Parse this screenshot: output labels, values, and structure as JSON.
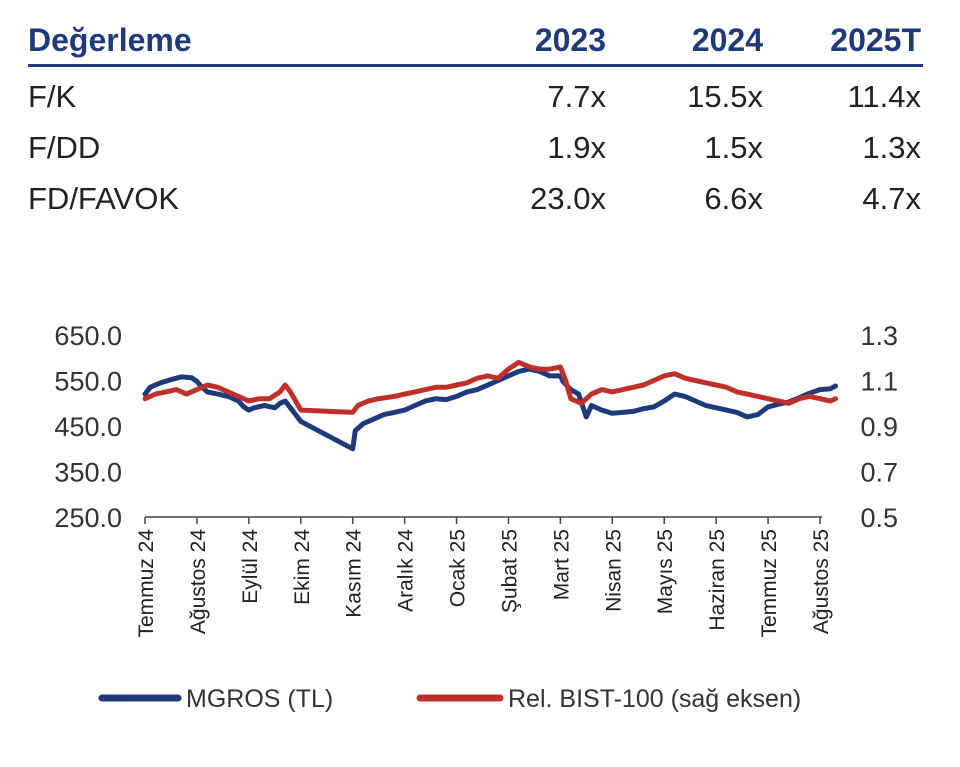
{
  "valuation": {
    "header": {
      "label": "Değerleme",
      "y1": "2023",
      "y2": "2024",
      "y3": "2025T"
    },
    "rows": [
      {
        "label": "F/K",
        "y1": "7.7x",
        "y2": "15.5x",
        "y3": "11.4x"
      },
      {
        "label": "F/DD",
        "y1": "1.9x",
        "y2": "1.5x",
        "y3": "1.3x"
      },
      {
        "label": "FD/FAVOK",
        "y1": "23.0x",
        "y2": "6.6x",
        "y3": "4.7x"
      }
    ]
  },
  "chart_data": {
    "type": "line",
    "x_categories": [
      "Temmuz 24",
      "Ağustos 24",
      "Eylül 24",
      "Ekim 24",
      "Kasım 24",
      "Aralık 24",
      "Ocak 25",
      "Şubat 25",
      "Mart 25",
      "Nisan 25",
      "Mayıs 25",
      "Haziran 25",
      "Temmuz 25",
      "Ağustos 25"
    ],
    "y_left": {
      "ticks": [
        "650.0",
        "550.0",
        "450.0",
        "350.0",
        "250.0"
      ],
      "range": [
        250,
        650
      ]
    },
    "y_right": {
      "ticks": [
        "1.3",
        "1.1",
        "0.9",
        "0.7",
        "0.5"
      ],
      "range": [
        0.5,
        1.3
      ]
    },
    "series": [
      {
        "name": "MGROS (TL)",
        "axis": "left",
        "color": "#1f3a7a",
        "points": [
          [
            0,
            520
          ],
          [
            0.1,
            535
          ],
          [
            0.3,
            545
          ],
          [
            0.5,
            552
          ],
          [
            0.7,
            558
          ],
          [
            0.9,
            556
          ],
          [
            1.0,
            548
          ],
          [
            1.1,
            535
          ],
          [
            1.2,
            525
          ],
          [
            1.4,
            520
          ],
          [
            1.6,
            515
          ],
          [
            1.8,
            505
          ],
          [
            1.9,
            492
          ],
          [
            2.0,
            485
          ],
          [
            2.1,
            490
          ],
          [
            2.3,
            495
          ],
          [
            2.5,
            490
          ],
          [
            2.6,
            500
          ],
          [
            2.7,
            505
          ],
          [
            2.8,
            490
          ],
          [
            3.0,
            460
          ],
          [
            4.0,
            400
          ],
          [
            4.05,
            440
          ],
          [
            4.2,
            455
          ],
          [
            4.4,
            465
          ],
          [
            4.6,
            475
          ],
          [
            4.8,
            480
          ],
          [
            5.0,
            485
          ],
          [
            5.2,
            495
          ],
          [
            5.4,
            505
          ],
          [
            5.6,
            510
          ],
          [
            5.8,
            508
          ],
          [
            6.0,
            515
          ],
          [
            6.2,
            525
          ],
          [
            6.4,
            530
          ],
          [
            6.6,
            540
          ],
          [
            6.8,
            550
          ],
          [
            7.0,
            560
          ],
          [
            7.2,
            570
          ],
          [
            7.4,
            575
          ],
          [
            7.6,
            570
          ],
          [
            7.8,
            560
          ],
          [
            8.0,
            560
          ],
          [
            8.05,
            548
          ],
          [
            8.2,
            530
          ],
          [
            8.35,
            520
          ],
          [
            8.5,
            470
          ],
          [
            8.6,
            495
          ],
          [
            8.8,
            485
          ],
          [
            9.0,
            478
          ],
          [
            9.2,
            480
          ],
          [
            9.4,
            482
          ],
          [
            9.6,
            488
          ],
          [
            9.8,
            492
          ],
          [
            10.0,
            505
          ],
          [
            10.2,
            520
          ],
          [
            10.4,
            515
          ],
          [
            10.6,
            505
          ],
          [
            10.8,
            495
          ],
          [
            11.0,
            490
          ],
          [
            11.2,
            485
          ],
          [
            11.4,
            480
          ],
          [
            11.6,
            470
          ],
          [
            11.8,
            475
          ],
          [
            12.0,
            492
          ],
          [
            12.2,
            498
          ],
          [
            12.4,
            503
          ],
          [
            12.6,
            512
          ],
          [
            12.8,
            522
          ],
          [
            13.0,
            530
          ],
          [
            13.2,
            532
          ],
          [
            13.3,
            538
          ]
        ]
      },
      {
        "name": "Rel. BIST-100 (sağ eksen)",
        "axis": "right",
        "color": "#c0302a",
        "points": [
          [
            0,
            1.02
          ],
          [
            0.2,
            1.04
          ],
          [
            0.4,
            1.05
          ],
          [
            0.6,
            1.06
          ],
          [
            0.8,
            1.04
          ],
          [
            1.0,
            1.06
          ],
          [
            1.2,
            1.08
          ],
          [
            1.4,
            1.07
          ],
          [
            1.6,
            1.05
          ],
          [
            1.8,
            1.03
          ],
          [
            2.0,
            1.01
          ],
          [
            2.2,
            1.02
          ],
          [
            2.4,
            1.02
          ],
          [
            2.6,
            1.05
          ],
          [
            2.7,
            1.08
          ],
          [
            2.8,
            1.05
          ],
          [
            3.0,
            0.97
          ],
          [
            4.0,
            0.96
          ],
          [
            4.1,
            0.99
          ],
          [
            4.3,
            1.01
          ],
          [
            4.5,
            1.02
          ],
          [
            4.8,
            1.03
          ],
          [
            5.0,
            1.04
          ],
          [
            5.2,
            1.05
          ],
          [
            5.4,
            1.06
          ],
          [
            5.6,
            1.07
          ],
          [
            5.8,
            1.07
          ],
          [
            6.0,
            1.08
          ],
          [
            6.2,
            1.09
          ],
          [
            6.4,
            1.11
          ],
          [
            6.6,
            1.12
          ],
          [
            6.8,
            1.11
          ],
          [
            7.0,
            1.15
          ],
          [
            7.2,
            1.18
          ],
          [
            7.4,
            1.16
          ],
          [
            7.6,
            1.15
          ],
          [
            7.8,
            1.15
          ],
          [
            8.0,
            1.16
          ],
          [
            8.1,
            1.1
          ],
          [
            8.2,
            1.02
          ],
          [
            8.4,
            1.0
          ],
          [
            8.6,
            1.04
          ],
          [
            8.8,
            1.06
          ],
          [
            9.0,
            1.05
          ],
          [
            9.2,
            1.06
          ],
          [
            9.4,
            1.07
          ],
          [
            9.6,
            1.08
          ],
          [
            9.8,
            1.1
          ],
          [
            10.0,
            1.12
          ],
          [
            10.2,
            1.13
          ],
          [
            10.4,
            1.11
          ],
          [
            10.6,
            1.1
          ],
          [
            10.8,
            1.09
          ],
          [
            11.0,
            1.08
          ],
          [
            11.2,
            1.07
          ],
          [
            11.4,
            1.05
          ],
          [
            11.6,
            1.04
          ],
          [
            11.8,
            1.03
          ],
          [
            12.0,
            1.02
          ],
          [
            12.2,
            1.01
          ],
          [
            12.4,
            1.0
          ],
          [
            12.6,
            1.02
          ],
          [
            12.8,
            1.03
          ],
          [
            13.0,
            1.02
          ],
          [
            13.2,
            1.01
          ],
          [
            13.3,
            1.02
          ]
        ]
      }
    ],
    "legend": {
      "placement": "bottom"
    }
  }
}
